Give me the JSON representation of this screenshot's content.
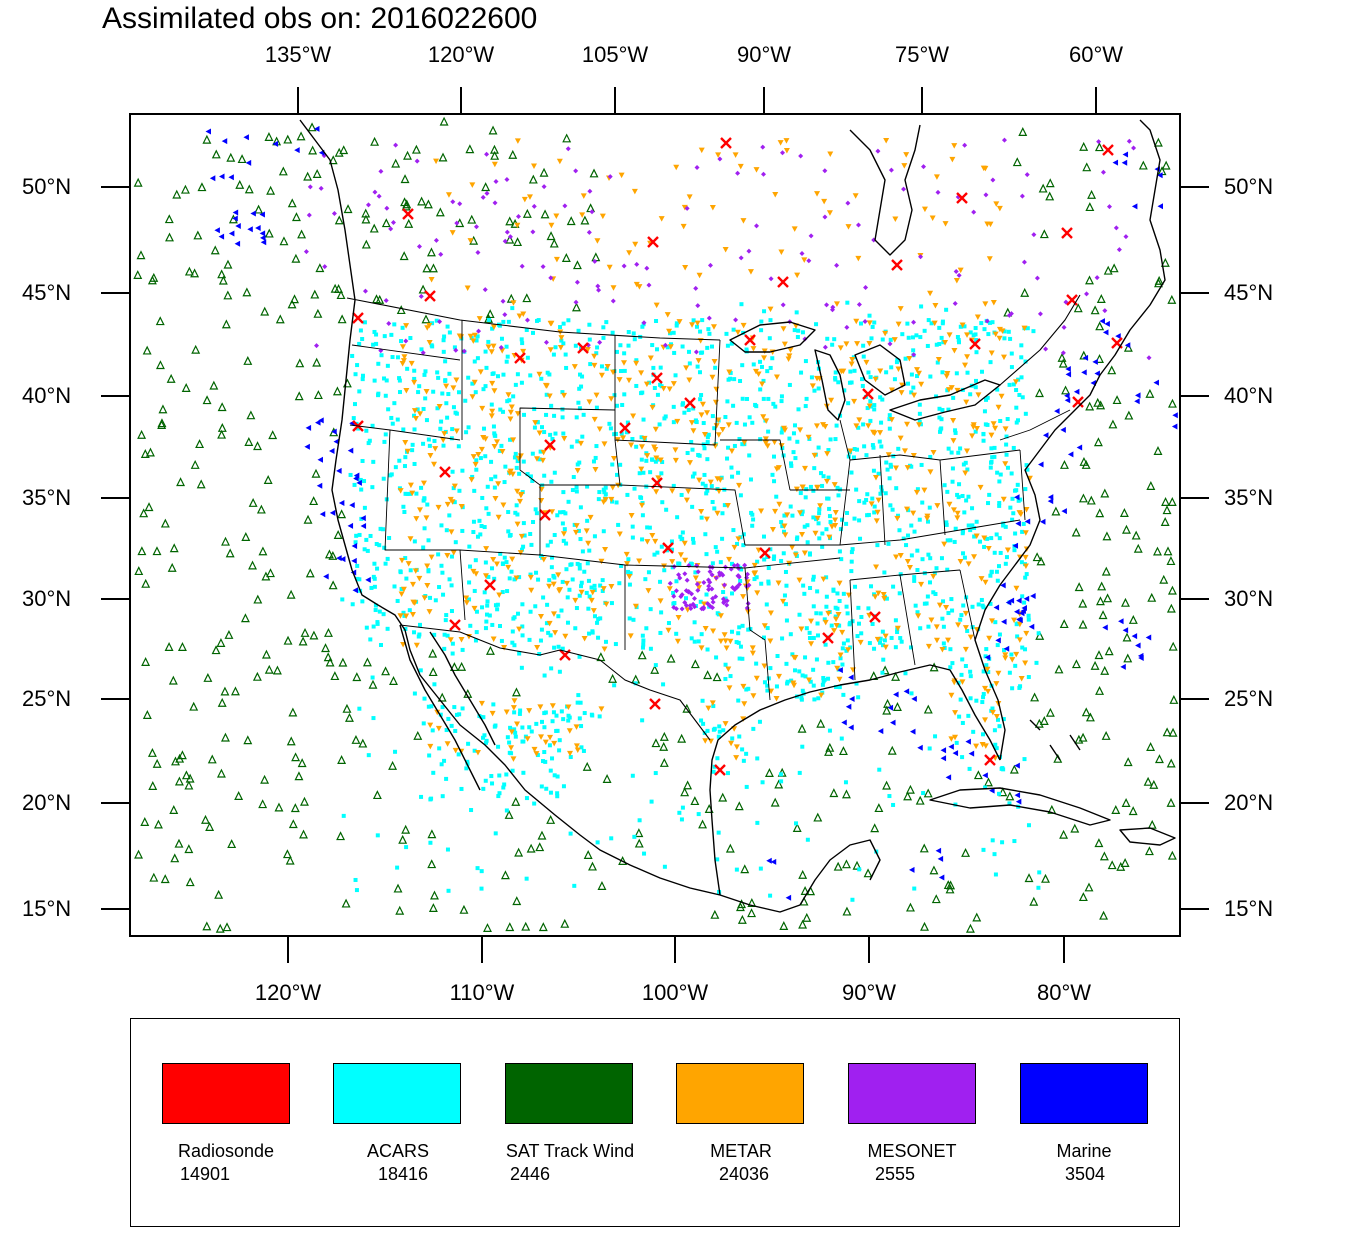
{
  "title": "Assimilated obs on: 2016022600",
  "axes": {
    "top_longitude_labels": [
      "135°W",
      "120°W",
      "105°W",
      "90°W",
      "75°W",
      "60°W"
    ],
    "bottom_longitude_labels": [
      "120°W",
      "110°W",
      "100°W",
      "90°W",
      "80°W"
    ],
    "latitude_labels": [
      "50°N",
      "45°N",
      "40°N",
      "35°N",
      "30°N",
      "25°N",
      "20°N",
      "15°N"
    ]
  },
  "legend": [
    {
      "name": "Radiosonde",
      "count": "14901",
      "color": "#ff0000",
      "marker": "x-mark"
    },
    {
      "name": "ACARS",
      "count": "18416",
      "color": "#00ffff",
      "marker": "small-square"
    },
    {
      "name": "SAT Track Wind",
      "count": "2446",
      "color": "#006400",
      "marker": "hollow-triangle-up"
    },
    {
      "name": "METAR",
      "count": "24036",
      "color": "#ffa500",
      "marker": "triangle-down"
    },
    {
      "name": "MESONET",
      "count": "2555",
      "color": "#a020f0",
      "marker": "small-diamond"
    },
    {
      "name": "Marine",
      "count": "3504",
      "color": "#0000ff",
      "marker": "triangle-left"
    }
  ],
  "map": {
    "region": "North America (CONUS, Mexico, Caribbean)",
    "lat_range": [
      14,
      54
    ],
    "lon_range": [
      -128,
      -74
    ],
    "coastline_color": "#000000",
    "background_color": "#ffffff"
  }
}
